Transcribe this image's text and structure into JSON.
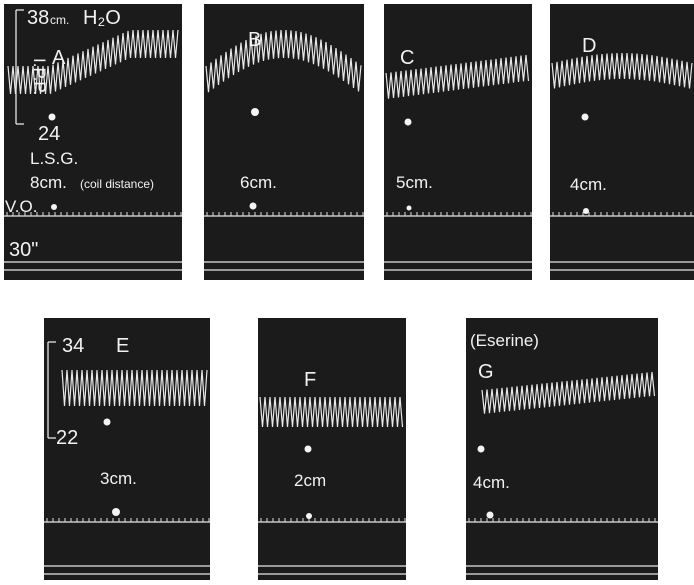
{
  "panels": [
    {
      "id": "A",
      "letter": "A",
      "coil": "8cm.",
      "coil_note": "(coil distance)"
    },
    {
      "id": "B",
      "letter": "B",
      "coil": "6cm."
    },
    {
      "id": "C",
      "letter": "C",
      "coil": "5cm."
    },
    {
      "id": "D",
      "letter": "D",
      "coil": "4cm."
    },
    {
      "id": "E",
      "letter": "E",
      "coil": "3cm."
    },
    {
      "id": "F",
      "letter": "F",
      "coil": "2cm"
    },
    {
      "id": "G",
      "letter": "G",
      "coil": "4cm.",
      "note": "(Eserine)"
    }
  ],
  "labels": {
    "pressure_top_value": "38",
    "pressure_top_unit": "cm.",
    "pressure_top_medium": "H₂O",
    "pressure_axis": "I.P.P.",
    "pressure_bottom_A": "24",
    "stim": "L.S.G.",
    "vo": "V.O.",
    "time": "30\"",
    "pressure_top_E": "34",
    "pressure_bottom_E": "22"
  },
  "colors": {
    "panel": "#1b1b1b",
    "trace": "#e8e8e8",
    "page": "#ffffff"
  }
}
